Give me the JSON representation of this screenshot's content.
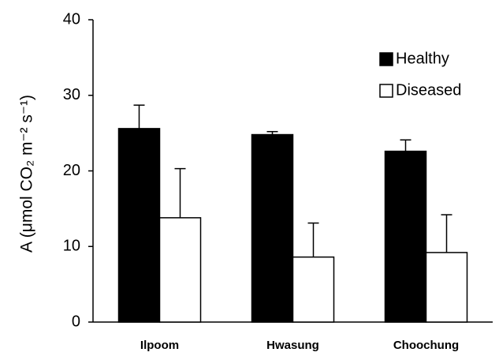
{
  "chart_data": {
    "type": "bar",
    "y_label": "A (μmol CO₂ m⁻² s⁻¹)",
    "categories": [
      "Ilpoom",
      "Hwasung",
      "Choochung"
    ],
    "series": [
      {
        "name": "Healthy",
        "color": "#000000",
        "values": [
          25.6,
          24.8,
          22.6
        ],
        "errors": [
          3.1,
          0.4,
          1.5
        ]
      },
      {
        "name": "Diseased",
        "color": "#ffffff",
        "values": [
          13.8,
          8.6,
          9.2
        ],
        "errors": [
          6.5,
          4.5,
          5.0
        ]
      }
    ],
    "ylim": [
      0,
      40
    ],
    "yticks": [
      0,
      10,
      20,
      30,
      40
    ],
    "legend": "upper right"
  }
}
